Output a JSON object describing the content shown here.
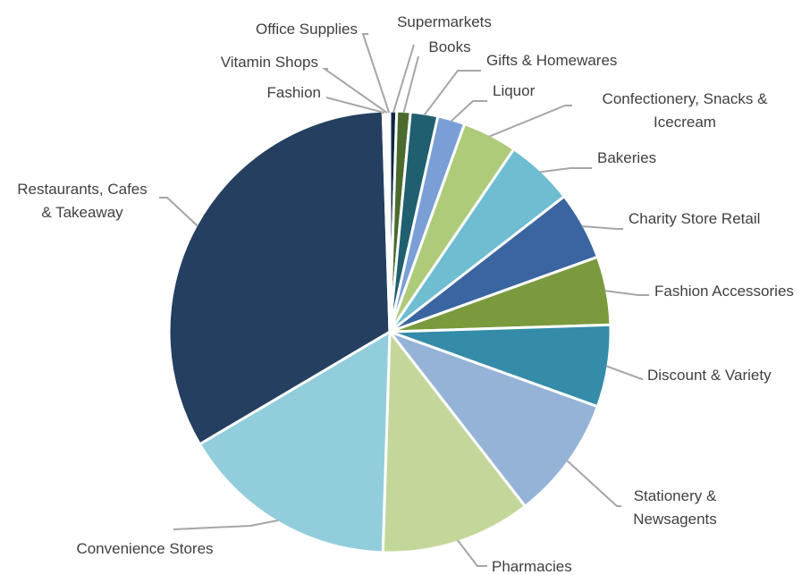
{
  "chart_data": {
    "type": "pie",
    "start_angle": 0,
    "direction": "clockwise",
    "slices": [
      {
        "label": "Supermarkets",
        "value": 0.5,
        "color": "#0e2841"
      },
      {
        "label": "Books",
        "value": 1.0,
        "color": "#4b6b2e"
      },
      {
        "label": "Gifts & Homewares",
        "value": 2.0,
        "color": "#1f5f70"
      },
      {
        "label": "Liquor",
        "value": 2.0,
        "color": "#7a9fd6"
      },
      {
        "label": "Confectionery, Snacks & Icecream",
        "value": 4.0,
        "color": "#aecb7a"
      },
      {
        "label": "Bakeries",
        "value": 5.0,
        "color": "#6ebdd1"
      },
      {
        "label": "Charity Store Retail",
        "value": 5.0,
        "color": "#3a65a0"
      },
      {
        "label": "Fashion Accessories",
        "value": 5.0,
        "color": "#7a9a3d"
      },
      {
        "label": "Discount & Variety",
        "value": 6.0,
        "color": "#348ca8"
      },
      {
        "label": "Stationery & Newsagents",
        "value": 9.0,
        "color": "#95b3d7"
      },
      {
        "label": "Pharmacies",
        "value": 11.0,
        "color": "#c4d79b"
      },
      {
        "label": "Convenience Stores",
        "value": 16.0,
        "color": "#92cddc"
      },
      {
        "label": "Restaurants, Cafes & Takeaway",
        "value": 33.0,
        "color": "#243f60"
      },
      {
        "label": "Fashion",
        "value": 0.2,
        "color": "#b7dee8"
      },
      {
        "label": "Vitamin Shops",
        "value": 0.2,
        "color": "#dbe5f1"
      },
      {
        "label": "Office Supplies",
        "value": 0.1,
        "color": "#9bbb59"
      }
    ]
  }
}
